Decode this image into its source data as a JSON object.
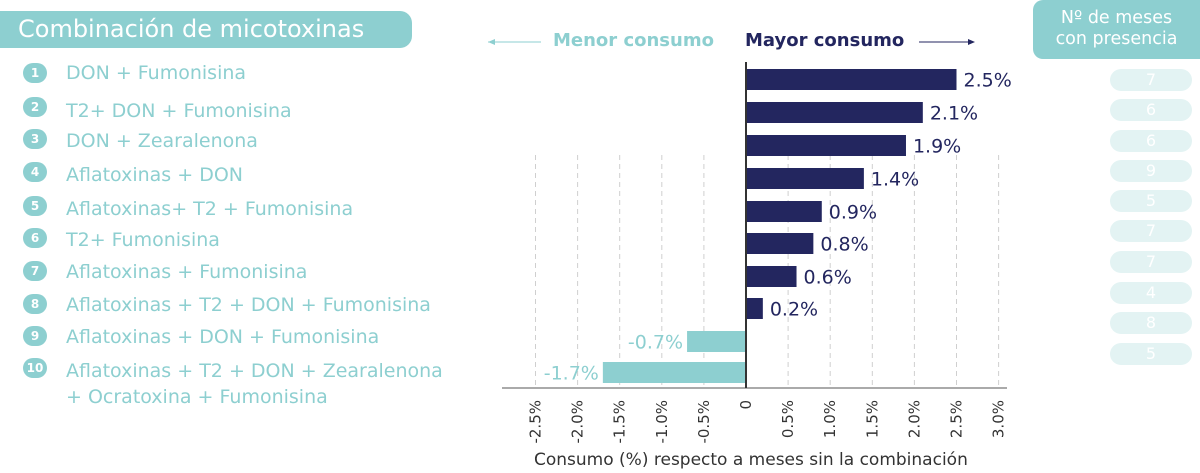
{
  "title": "Combinación de micotoxinas",
  "months_header": [
    "Nº de meses",
    "con presencia"
  ],
  "direction": {
    "menor": "Menor consumo",
    "mayor": "Mayor consumo"
  },
  "colors": {
    "positive": "#23265f",
    "negative": "#8dcfd0",
    "accent": "#8dcfd0",
    "pill": "#e3f3f3"
  },
  "rows": [
    {
      "num": "1",
      "label": [
        "DON + Fumonisina"
      ],
      "months": "7"
    },
    {
      "num": "2",
      "label": [
        "T2+ DON + Fumonisina"
      ],
      "months": "6"
    },
    {
      "num": "3",
      "label": [
        "DON + Zearalenona"
      ],
      "months": "6"
    },
    {
      "num": "4",
      "label": [
        "Aflatoxinas + DON"
      ],
      "months": "9"
    },
    {
      "num": "5",
      "label": [
        "Aflatoxinas+ T2 + Fumonisina"
      ],
      "months": "5"
    },
    {
      "num": "6",
      "label": [
        "T2+ Fumonisina"
      ],
      "months": "7"
    },
    {
      "num": "7",
      "label": [
        "Aflatoxinas + Fumonisina"
      ],
      "months": "7"
    },
    {
      "num": "8",
      "label": [
        "Aflatoxinas + T2 + DON + Fumonisina"
      ],
      "months": "4"
    },
    {
      "num": "9",
      "label": [
        "Aflatoxinas + DON + Fumonisina"
      ],
      "months": "8"
    },
    {
      "num": "10",
      "label": [
        "Aflatoxinas + T2 + DON + Zearalenona",
        "+ Ocratoxina + Fumonisina"
      ],
      "months": "5"
    }
  ],
  "chart_data": {
    "type": "bar",
    "orientation": "horizontal",
    "categories": [
      "1",
      "2",
      "3",
      "4",
      "5",
      "6",
      "7",
      "8",
      "9",
      "10"
    ],
    "values": [
      2.5,
      2.1,
      1.9,
      1.4,
      0.9,
      0.8,
      0.6,
      0.2,
      -0.7,
      -1.7
    ],
    "data_labels": [
      "2.5%",
      "2.1%",
      "1.9%",
      "1.4%",
      "0.9%",
      "0.8%",
      "0.6%",
      "0.2%",
      "-0.7%",
      "-1.7%"
    ],
    "xlabel": "Consumo (%) respecto a meses sin la combinación",
    "xlim": [
      -2.5,
      3.0
    ],
    "xticks": [
      -2.5,
      -2.0,
      -1.5,
      -1.0,
      -0.5,
      0,
      0.5,
      1.0,
      1.5,
      2.0,
      2.5,
      3.0
    ],
    "xtick_labels": [
      "-2.5%",
      "-2.0%",
      "-1.5%",
      "-1.0%",
      "-0.5%",
      "0",
      "0.5%",
      "1.0%",
      "1.5%",
      "2.0%",
      "2.5%",
      "3.0%"
    ],
    "grid": true
  }
}
